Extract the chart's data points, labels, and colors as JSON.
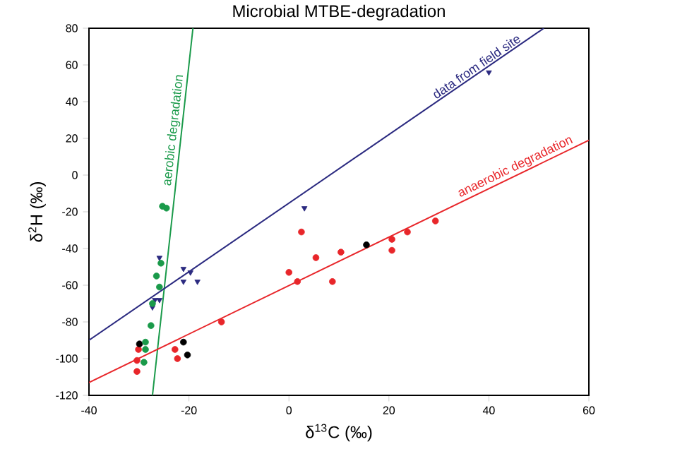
{
  "chart_data": {
    "type": "scatter",
    "title": "Microbial MTBE-degradation",
    "xlabel": "δ$^{13}$C (‰)",
    "ylabel": "δ$^{2}$H (‰)",
    "xlim": [
      -40,
      60
    ],
    "ylim": [
      -120,
      80
    ],
    "xticks": [
      -40,
      -20,
      0,
      20,
      40,
      60
    ],
    "yticks": [
      -120,
      -100,
      -80,
      -60,
      -40,
      -20,
      0,
      20,
      40,
      60,
      80
    ],
    "grid": false,
    "series": [
      {
        "type": "line",
        "name": "aerobic degradation",
        "color": "#1a9a4a",
        "marker": "none",
        "x": [
          -27.3,
          -19.2
        ],
        "values": [
          -120,
          80
        ]
      },
      {
        "type": "line",
        "name": "data from field site",
        "color": "#2b2a80",
        "marker": "none",
        "x": [
          -40,
          51
        ],
        "values": [
          -90,
          80
        ]
      },
      {
        "type": "line",
        "name": "anaerobic degradation",
        "color": "#e8262a",
        "marker": "none",
        "x": [
          -40,
          60
        ],
        "values": [
          -113,
          19
        ]
      },
      {
        "color": "#e8262a",
        "marker": "circle",
        "x": [
          -30.1,
          -30.4,
          -30.4,
          -22.8,
          -22.3,
          -13.5,
          0,
          1.7,
          2.5,
          5.4,
          8.7,
          10.4,
          20.6,
          20.6,
          23.7,
          29.3
        ],
        "values": [
          -95,
          -101,
          -107,
          -95,
          -100,
          -80,
          -53,
          -58,
          -31,
          -45,
          -58,
          -42,
          -35,
          -41,
          -31,
          -25
        ]
      },
      {
        "color": "#000000",
        "marker": "circle",
        "x": [
          -29.9,
          -21.1,
          -20.3,
          15.5
        ],
        "values": [
          -92,
          -91,
          -98,
          -38
        ]
      },
      {
        "color": "#2b2a80",
        "marker": "triangle",
        "x": [
          -25.9,
          -21.1,
          -19.7,
          -18.3,
          -21.1,
          -26.8,
          -25.9,
          -27.3,
          3.1,
          40
        ],
        "values": [
          -45,
          -51,
          -53,
          -58,
          -58,
          -68,
          -68,
          -72,
          -18,
          56
        ]
      },
      {
        "color": "#1a9a4a",
        "marker": "circle",
        "x": [
          -24.5,
          -25.3,
          -25.6,
          -26.5,
          -25.9,
          -27.3,
          -27.6,
          -28.7,
          -28.7,
          -29
        ],
        "values": [
          -18,
          -17,
          -48,
          -55,
          -61,
          -70,
          -82,
          -91,
          -95,
          -102
        ]
      }
    ]
  }
}
